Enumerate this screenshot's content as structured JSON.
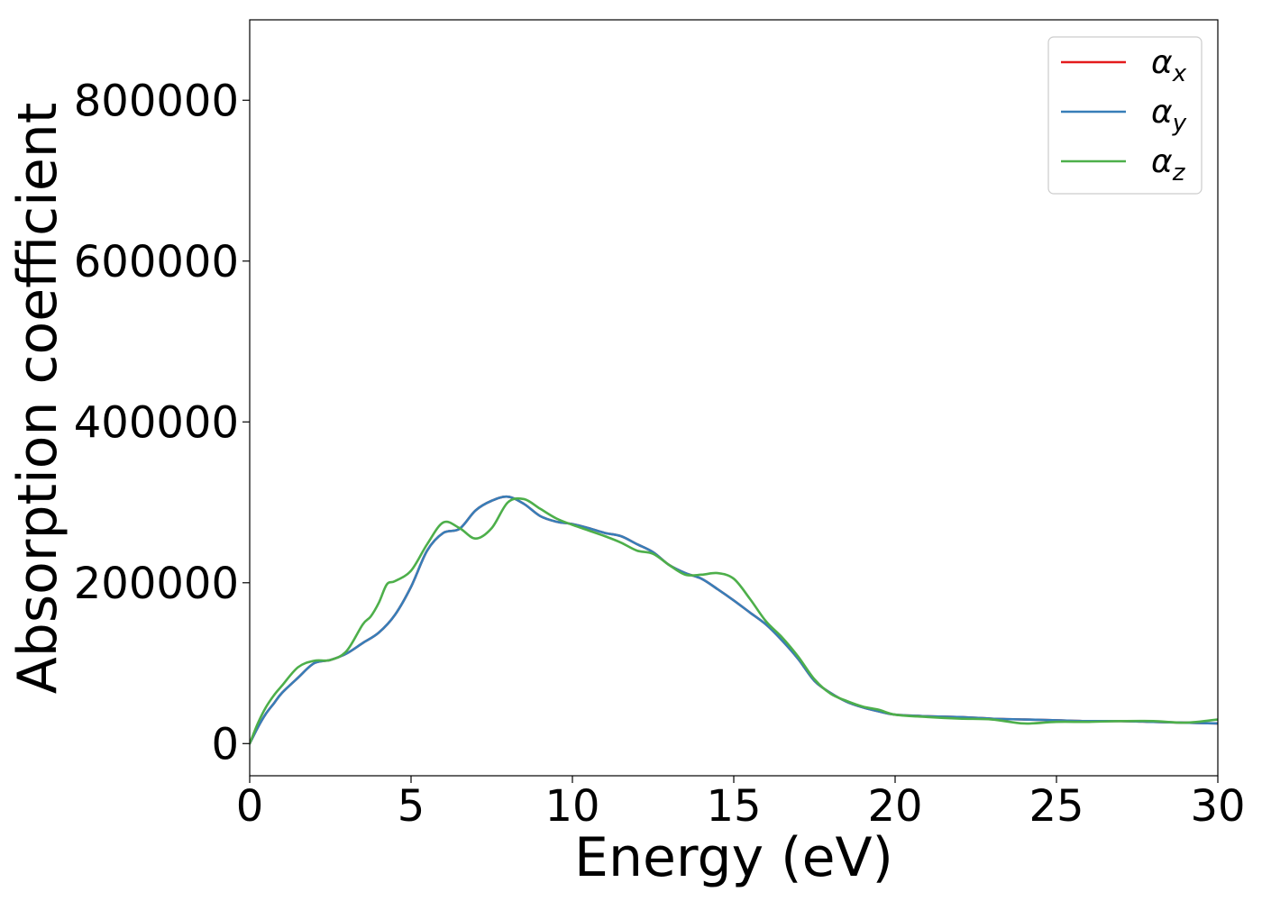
{
  "chart_data": {
    "type": "line",
    "xlabel": "Energy (eV)",
    "ylabel": "Absorption coefficient",
    "xlim": [
      0,
      30
    ],
    "ylim": [
      -40000,
      900000
    ],
    "xticks": [
      0,
      5,
      10,
      15,
      20,
      25,
      30
    ],
    "yticks": [
      0,
      200000,
      400000,
      600000,
      800000
    ],
    "xtick_labels": [
      "0",
      "5",
      "10",
      "15",
      "20",
      "25",
      "30"
    ],
    "ytick_labels": [
      "0",
      "200000",
      "400000",
      "600000",
      "800000"
    ],
    "grid": false,
    "legend_position": "top-right",
    "series": [
      {
        "name": "αx",
        "symbol": "α",
        "subscript": "x",
        "color": "#e41a1c",
        "x": [
          0,
          0.25,
          0.5,
          0.75,
          1,
          1.5,
          2,
          2.5,
          3,
          3.5,
          4,
          4.5,
          5,
          5.5,
          6,
          6.5,
          7,
          7.5,
          8,
          8.5,
          9,
          9.5,
          10,
          10.5,
          11,
          11.5,
          12,
          12.5,
          13,
          13.5,
          14,
          14.5,
          15,
          15.5,
          16,
          16.5,
          17,
          17.5,
          18,
          18.5,
          19,
          19.5,
          20,
          21,
          22,
          23,
          24,
          25,
          26,
          27,
          28,
          29,
          30
        ],
        "y": [
          0,
          20000,
          37000,
          50000,
          63000,
          82000,
          100000,
          104000,
          112000,
          125000,
          138000,
          160000,
          195000,
          240000,
          262000,
          267000,
          290000,
          302000,
          307000,
          298000,
          283000,
          276000,
          273000,
          268000,
          262000,
          258000,
          248000,
          238000,
          222000,
          212000,
          205000,
          192000,
          178000,
          163000,
          148000,
          128000,
          105000,
          78000,
          63000,
          52000,
          45000,
          40000,
          36000,
          34000,
          33000,
          31000,
          30000,
          29000,
          28000,
          28000,
          27000,
          26000,
          25000
        ]
      },
      {
        "name": "αy",
        "symbol": "α",
        "subscript": "y",
        "color": "#377eb8",
        "x": [
          0,
          0.25,
          0.5,
          0.75,
          1,
          1.5,
          2,
          2.5,
          3,
          3.5,
          4,
          4.5,
          5,
          5.5,
          6,
          6.5,
          7,
          7.5,
          8,
          8.5,
          9,
          9.5,
          10,
          10.5,
          11,
          11.5,
          12,
          12.5,
          13,
          13.5,
          14,
          14.5,
          15,
          15.5,
          16,
          16.5,
          17,
          17.5,
          18,
          18.5,
          19,
          19.5,
          20,
          21,
          22,
          23,
          24,
          25,
          26,
          27,
          28,
          29,
          30
        ],
        "y": [
          0,
          20000,
          37000,
          50000,
          63000,
          82000,
          100000,
          104000,
          112000,
          125000,
          138000,
          160000,
          195000,
          240000,
          262000,
          267000,
          290000,
          302000,
          307000,
          298000,
          283000,
          276000,
          273000,
          268000,
          262000,
          258000,
          248000,
          238000,
          222000,
          212000,
          205000,
          192000,
          178000,
          163000,
          148000,
          128000,
          105000,
          78000,
          63000,
          52000,
          45000,
          40000,
          36000,
          34000,
          33000,
          31000,
          30000,
          29000,
          28000,
          28000,
          27000,
          26000,
          25000
        ]
      },
      {
        "name": "αz",
        "symbol": "α",
        "subscript": "z",
        "color": "#4daf4a",
        "x": [
          0,
          0.25,
          0.5,
          0.75,
          1,
          1.5,
          2,
          2.5,
          3,
          3.5,
          3.75,
          4,
          4.25,
          4.5,
          5,
          5.5,
          6,
          6.5,
          7,
          7.5,
          8,
          8.5,
          9,
          9.5,
          10,
          10.5,
          11,
          11.5,
          12,
          12.5,
          13,
          13.5,
          14,
          14.5,
          15,
          15.5,
          16,
          16.5,
          17,
          17.5,
          18,
          18.5,
          19,
          19.5,
          20,
          21,
          22,
          23,
          24,
          25,
          26,
          27,
          28,
          29,
          30
        ],
        "y": [
          0,
          25000,
          45000,
          60000,
          72000,
          95000,
          103000,
          104000,
          115000,
          148000,
          158000,
          175000,
          198000,
          202000,
          215000,
          248000,
          275000,
          268000,
          255000,
          268000,
          300000,
          304000,
          292000,
          280000,
          272000,
          265000,
          258000,
          250000,
          240000,
          236000,
          222000,
          210000,
          210000,
          212000,
          205000,
          180000,
          152000,
          132000,
          108000,
          80000,
          62000,
          53000,
          46000,
          42000,
          36000,
          33000,
          31000,
          30000,
          25000,
          27000,
          27000,
          28000,
          28000,
          26000,
          30000
        ]
      }
    ]
  }
}
